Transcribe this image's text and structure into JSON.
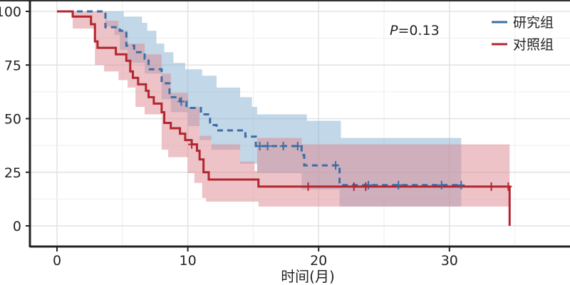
{
  "chart_data": {
    "type": "line",
    "subtype": "kaplan-meier",
    "title": "",
    "xlabel": "时间(月)",
    "ylabel": "",
    "xlim": [
      -2,
      39
    ],
    "ylim": [
      0,
      100
    ],
    "x_ticks": [
      "0",
      "10",
      "20",
      "30"
    ],
    "x_tick_values": [
      0,
      10,
      20,
      30
    ],
    "y_ticks": [
      "0",
      "25",
      "50",
      "75",
      "100"
    ],
    "y_tick_values": [
      0,
      25,
      50,
      75,
      100
    ],
    "grid": true,
    "legend_position": "top-right",
    "annotation": {
      "p_label": "P",
      "p_value": "=0.13"
    },
    "series": [
      {
        "name": "研究组",
        "color": "#3b6ea5",
        "band_color": "#8fb6d3",
        "line_style": "dashed",
        "end": 30.9,
        "steps": [
          [
            0,
            100
          ],
          [
            3.7,
            92.6
          ],
          [
            4.8,
            91
          ],
          [
            5.3,
            84
          ],
          [
            5.9,
            81
          ],
          [
            6.7,
            78
          ],
          [
            7.0,
            73
          ],
          [
            8.0,
            66.5
          ],
          [
            8.6,
            60
          ],
          [
            9.4,
            58
          ],
          [
            9.9,
            55
          ],
          [
            11.0,
            52
          ],
          [
            11.7,
            47
          ],
          [
            12.2,
            44.5
          ],
          [
            14.4,
            41.6
          ],
          [
            15.2,
            37.2
          ],
          [
            18.7,
            33
          ],
          [
            18.9,
            28.2
          ],
          [
            21.6,
            19
          ]
        ],
        "ci_upper": [
          [
            0,
            100
          ],
          [
            5.1,
            97.6
          ],
          [
            6.5,
            94.7
          ],
          [
            6.9,
            91
          ],
          [
            7.6,
            85
          ],
          [
            8.2,
            81
          ],
          [
            8.9,
            76
          ],
          [
            9.8,
            73
          ],
          [
            11.1,
            70
          ],
          [
            12.2,
            64.5
          ],
          [
            14.0,
            60
          ],
          [
            14.9,
            55.5
          ],
          [
            15.3,
            52
          ],
          [
            19.1,
            49
          ],
          [
            21.7,
            41
          ]
        ],
        "ci_lower": [
          [
            0,
            100
          ],
          [
            3.7,
            93
          ],
          [
            4.4,
            89
          ],
          [
            4.8,
            82
          ],
          [
            5.4,
            76
          ],
          [
            6.7,
            71
          ],
          [
            8.0,
            59
          ],
          [
            8.7,
            53
          ],
          [
            10.0,
            46.5
          ],
          [
            10.9,
            40
          ],
          [
            11.8,
            35.5
          ],
          [
            14.0,
            29
          ],
          [
            15.3,
            24.6
          ],
          [
            18.7,
            17
          ],
          [
            21.6,
            9
          ]
        ],
        "censored": [
          [
            9.5,
            58
          ],
          [
            15.5,
            37.2
          ],
          [
            16.1,
            37.2
          ],
          [
            17.3,
            37.2
          ],
          [
            18.4,
            37.2
          ],
          [
            21.3,
            28.2
          ],
          [
            23.8,
            19
          ],
          [
            26.1,
            19
          ],
          [
            29.4,
            19
          ],
          [
            30.9,
            19
          ]
        ]
      },
      {
        "name": "对照组",
        "color": "#b3262f",
        "band_color": "#dc8790",
        "line_style": "solid",
        "end": 34.6,
        "final_drop": 0,
        "steps": [
          [
            0,
            100
          ],
          [
            1.2,
            97.6
          ],
          [
            2.6,
            94
          ],
          [
            2.9,
            86
          ],
          [
            3.1,
            83
          ],
          [
            4.5,
            80
          ],
          [
            5.3,
            77
          ],
          [
            5.6,
            72
          ],
          [
            5.8,
            69
          ],
          [
            6.2,
            66
          ],
          [
            6.8,
            63
          ],
          [
            7.0,
            60
          ],
          [
            7.4,
            57
          ],
          [
            8.0,
            53
          ],
          [
            8.2,
            48
          ],
          [
            8.7,
            45.5
          ],
          [
            9.4,
            43
          ],
          [
            9.8,
            40
          ],
          [
            10.3,
            38
          ],
          [
            10.7,
            35
          ],
          [
            10.9,
            31
          ],
          [
            11.2,
            25
          ],
          [
            11.6,
            21.6
          ],
          [
            15.4,
            18.3
          ]
        ],
        "ci_upper": [
          [
            0,
            100
          ],
          [
            3.8,
            95.7
          ],
          [
            4.7,
            91
          ],
          [
            5.4,
            85
          ],
          [
            6.7,
            80
          ],
          [
            8.0,
            71
          ],
          [
            8.7,
            62
          ],
          [
            10.0,
            55.5
          ],
          [
            10.9,
            42
          ],
          [
            11.8,
            38
          ],
          [
            14.0,
            30
          ],
          [
            15.1,
            25.6
          ],
          [
            15.3,
            41
          ],
          [
            18.7,
            38
          ]
        ],
        "ci_lower": [
          [
            0,
            100
          ],
          [
            1.2,
            92
          ],
          [
            2.9,
            75
          ],
          [
            3.6,
            72
          ],
          [
            4.7,
            68
          ],
          [
            5.4,
            64.5
          ],
          [
            6.0,
            55.5
          ],
          [
            6.7,
            52
          ],
          [
            8.0,
            35.5
          ],
          [
            8.5,
            32
          ],
          [
            10.0,
            24.6
          ],
          [
            10.5,
            20
          ],
          [
            11.1,
            13
          ],
          [
            11.4,
            11.3
          ],
          [
            15.4,
            9
          ]
        ],
        "censored": [
          [
            10.3,
            38
          ],
          [
            19.2,
            18.3
          ],
          [
            22.7,
            18.3
          ],
          [
            23.6,
            18.3
          ],
          [
            33.2,
            18.3
          ],
          [
            34.5,
            18.3
          ]
        ]
      }
    ]
  }
}
